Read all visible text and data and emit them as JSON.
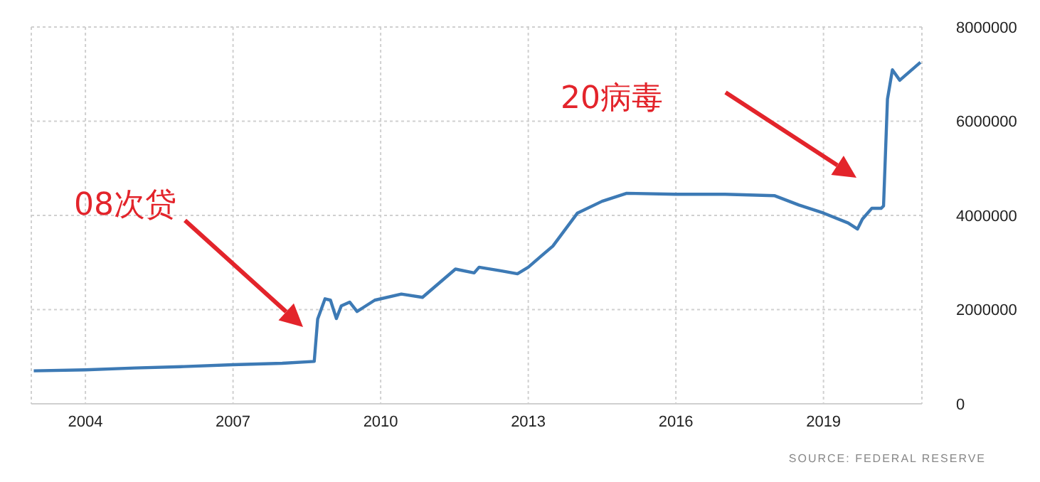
{
  "chart_data": {
    "type": "line",
    "x": [
      2002.95,
      2004,
      2005,
      2006,
      2007,
      2008,
      2008.65,
      2008.72,
      2008.87,
      2008.98,
      2009.1,
      2009.2,
      2009.37,
      2009.52,
      2009.88,
      2010.42,
      2010.85,
      2011.52,
      2011.9,
      2012.0,
      2012.46,
      2012.78,
      2013.0,
      2013.5,
      2014.0,
      2014.5,
      2015.0,
      2016.0,
      2017.0,
      2018.0,
      2018.5,
      2019.0,
      2019.5,
      2019.69,
      2019.79,
      2019.98,
      2020.17,
      2020.22,
      2020.3,
      2020.4,
      2020.55,
      2020.97
    ],
    "series": [
      {
        "color": "#3d7ab5",
        "values": [
          700000,
          720000,
          760000,
          790000,
          830000,
          860000,
          900000,
          1800000,
          2230000,
          2200000,
          1810000,
          2080000,
          2160000,
          1960000,
          2200000,
          2330000,
          2260000,
          2860000,
          2780000,
          2900000,
          2820000,
          2760000,
          2900000,
          3350000,
          4050000,
          4300000,
          4470000,
          4450000,
          4450000,
          4420000,
          4220000,
          4050000,
          3840000,
          3710000,
          3920000,
          4150000,
          4150000,
          4200000,
          6470000,
          7090000,
          6870000,
          7250000
        ]
      }
    ],
    "xlim": [
      2002.9,
      2021.0
    ],
    "xticks": [
      2004,
      2007,
      2010,
      2013,
      2016,
      2019
    ],
    "ylim": [
      0,
      8000000
    ],
    "yticks": [
      0,
      2000000,
      4000000,
      6000000,
      8000000
    ],
    "grid": true,
    "legend": false,
    "marker": "none",
    "line_style": "solid",
    "annotations": [
      "08次贷",
      "20病毒",
      "SOURCE: FEDERAL RESERVE"
    ]
  }
}
